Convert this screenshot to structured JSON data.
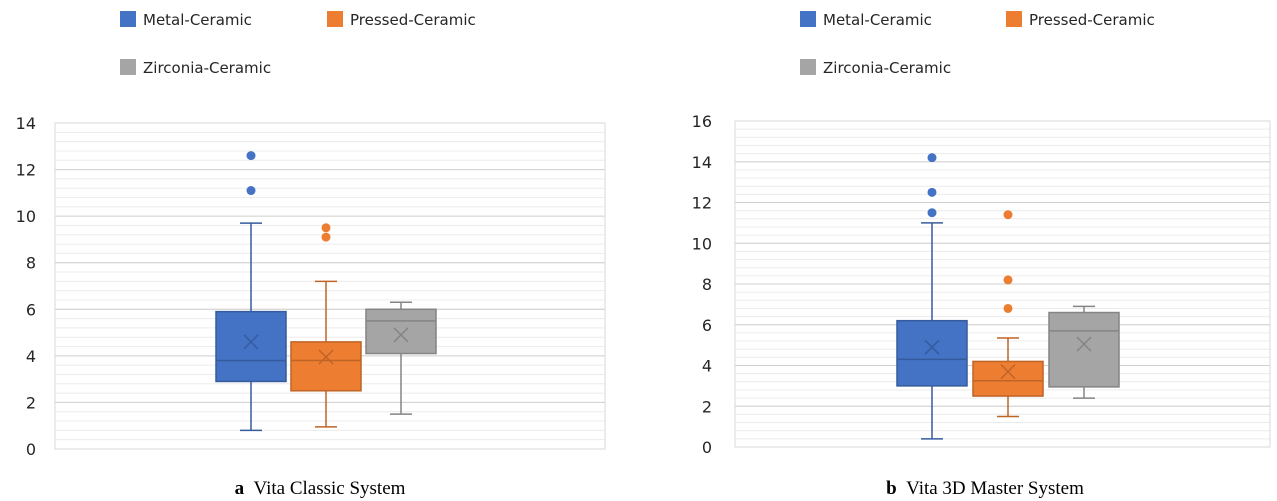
{
  "chart_data": [
    {
      "type": "box",
      "caption_letter": "a",
      "caption": "Vita Classic System",
      "ylim": [
        0,
        14
      ],
      "yticks": [
        0,
        2,
        4,
        6,
        8,
        10,
        12,
        14
      ],
      "grid": true,
      "legend_position": "top",
      "series": [
        {
          "name": "Metal-Ceramic",
          "color": "#4472C4",
          "min": 0.8,
          "q1": 2.9,
          "median": 3.8,
          "q3": 5.9,
          "max": 9.7,
          "mean": 4.6,
          "outliers": [
            11.1,
            12.6
          ]
        },
        {
          "name": "Pressed-Ceramic",
          "color": "#ED7D31",
          "min": 0.95,
          "q1": 2.5,
          "median": 3.8,
          "q3": 4.6,
          "max": 7.2,
          "mean": 3.95,
          "outliers": [
            9.1,
            9.5
          ]
        },
        {
          "name": "Zirconia-Ceramic",
          "color": "#A5A5A5",
          "min": 1.5,
          "q1": 4.1,
          "median": 5.5,
          "q3": 6.0,
          "max": 6.3,
          "mean": 4.9,
          "outliers": []
        }
      ]
    },
    {
      "type": "box",
      "caption_letter": "b",
      "caption": "Vita 3D Master  System",
      "ylim": [
        0,
        16
      ],
      "yticks": [
        0,
        2,
        4,
        6,
        8,
        10,
        12,
        14,
        16
      ],
      "grid": true,
      "legend_position": "top",
      "series": [
        {
          "name": "Metal-Ceramic",
          "color": "#4472C4",
          "min": 0.4,
          "q1": 3.0,
          "median": 4.3,
          "q3": 6.2,
          "max": 11.0,
          "mean": 4.9,
          "outliers": [
            11.5,
            12.5,
            14.2
          ]
        },
        {
          "name": "Pressed-Ceramic",
          "color": "#ED7D31",
          "min": 1.5,
          "q1": 2.5,
          "median": 3.25,
          "q3": 4.2,
          "max": 5.35,
          "mean": 3.7,
          "outliers": [
            6.8,
            8.2,
            11.4
          ]
        },
        {
          "name": "Zirconia-Ceramic",
          "color": "#A5A5A5",
          "min": 2.4,
          "q1": 2.95,
          "median": 5.7,
          "q3": 6.6,
          "max": 6.9,
          "mean": 5.05,
          "outliers": []
        }
      ]
    }
  ]
}
